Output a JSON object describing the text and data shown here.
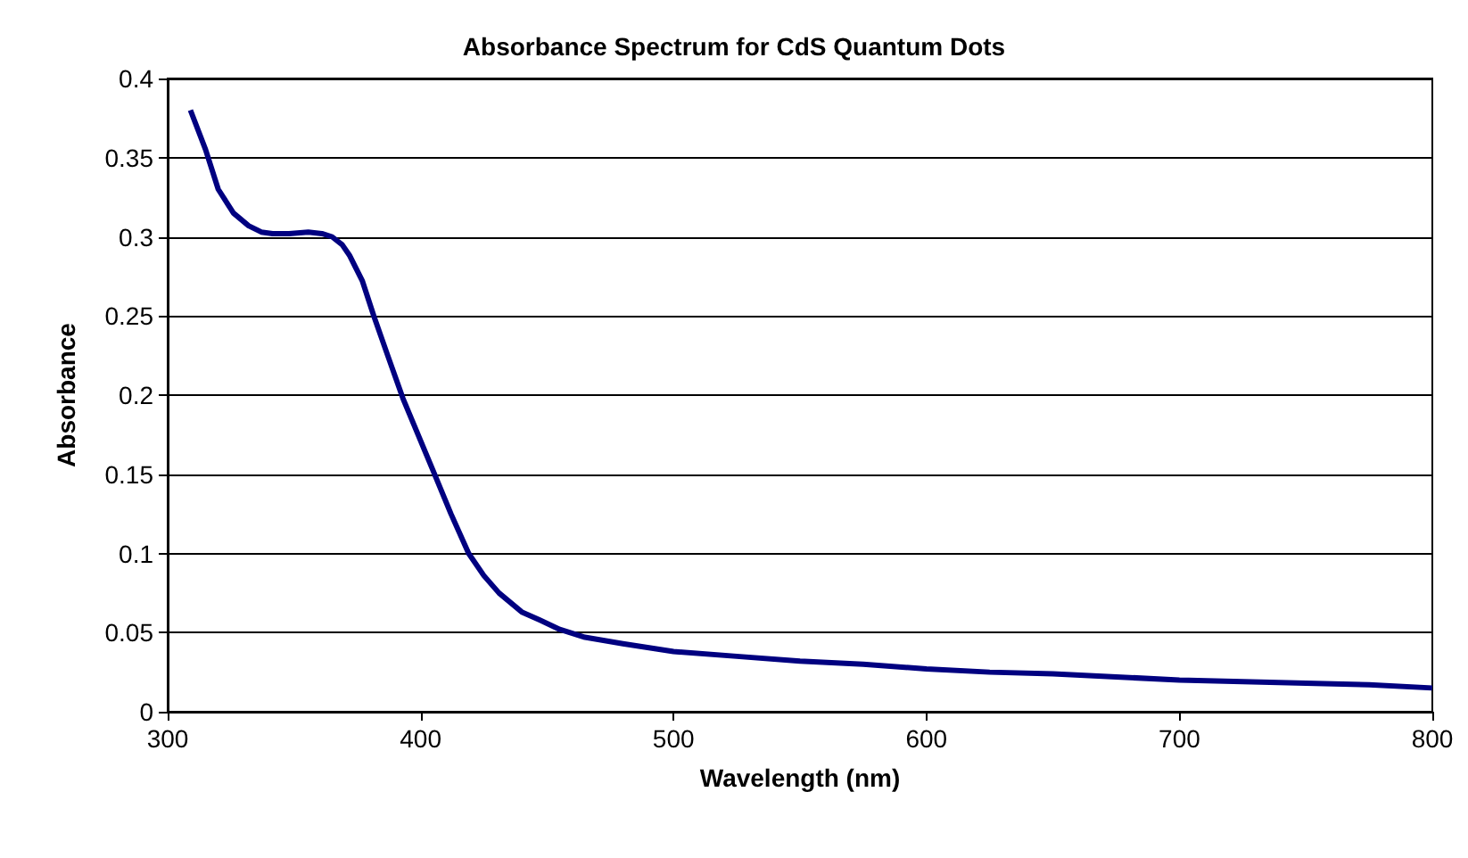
{
  "chart_data": {
    "type": "line",
    "title": "Absorbance Spectrum for CdS Quantum Dots",
    "xlabel": "Wavelength (nm)",
    "ylabel": "Absorbance",
    "x": [
      309,
      315,
      320,
      326,
      332,
      337,
      341.5,
      348,
      355.6,
      361,
      365,
      369,
      372,
      377,
      381.5,
      387,
      393,
      399,
      405,
      412,
      419,
      425,
      431,
      440,
      447,
      455,
      465,
      480,
      500,
      525,
      550,
      575,
      600,
      625,
      650,
      675,
      700,
      725,
      750,
      775,
      800
    ],
    "series": [
      {
        "color": "#000080",
        "values": [
          0.38,
          0.355,
          0.33,
          0.315,
          0.307,
          0.303,
          0.302,
          0.302,
          0.303,
          0.302,
          0.3,
          0.295,
          0.288,
          0.272,
          0.25,
          0.225,
          0.198,
          0.175,
          0.152,
          0.125,
          0.1,
          0.086,
          0.075,
          0.063,
          0.058,
          0.052,
          0.047,
          0.043,
          0.038,
          0.035,
          0.032,
          0.03,
          0.027,
          0.025,
          0.024,
          0.022,
          0.02,
          0.019,
          0.018,
          0.017,
          0.015
        ]
      }
    ],
    "xlim": [
      300,
      800
    ],
    "xticks": [
      300,
      400,
      500,
      600,
      700,
      800
    ],
    "ylim": [
      0,
      0.4
    ],
    "yticks": [
      0,
      0.05,
      0.1,
      0.15,
      0.2,
      0.25,
      0.3,
      0.35,
      0.4
    ],
    "grid": "y",
    "marker": "none",
    "line_style": "solid"
  }
}
